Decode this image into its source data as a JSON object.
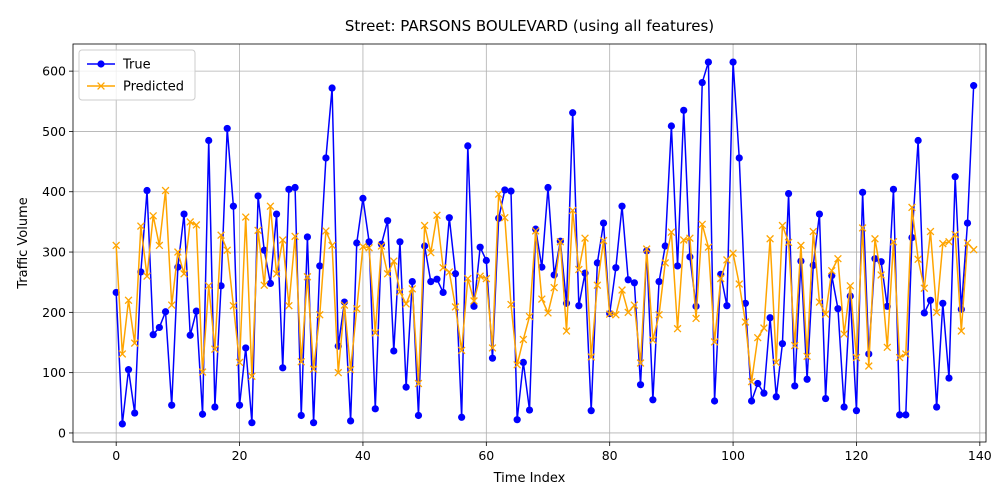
{
  "chart_data": {
    "type": "line",
    "title": "Street: PARSONS BOULEVARD (using all features)",
    "xlabel": "Time Index",
    "ylabel": "Traffic Volume",
    "xlim": [
      -7,
      141
    ],
    "ylim": [
      -15,
      645
    ],
    "x_ticks": [
      0,
      20,
      40,
      60,
      80,
      100,
      120,
      140
    ],
    "y_ticks": [
      0,
      100,
      200,
      300,
      400,
      500,
      600
    ],
    "grid": true,
    "legend_position": "upper-left",
    "series": [
      {
        "name": "True",
        "color": "#0000ff",
        "marker": "circle",
        "values": [
          233,
          15,
          105,
          33,
          267,
          402,
          163,
          175,
          201,
          46,
          275,
          363,
          162,
          202,
          31,
          485,
          43,
          244,
          505,
          376,
          46,
          141,
          17,
          393,
          303,
          248,
          363,
          108,
          404,
          407,
          29,
          325,
          17,
          277,
          456,
          572,
          144,
          217,
          20,
          315,
          389,
          317,
          40,
          313,
          352,
          136,
          317,
          76,
          251,
          29,
          310,
          251,
          255,
          233,
          357,
          264,
          26,
          476,
          210,
          308,
          286,
          124,
          356,
          403,
          401,
          22,
          117,
          38,
          338,
          275,
          407,
          262,
          318,
          215,
          531,
          211,
          265,
          37,
          282,
          348,
          198,
          274,
          376,
          254,
          249,
          80,
          302,
          55,
          251,
          310,
          509,
          277,
          535,
          292,
          210,
          581,
          615,
          53,
          263,
          211,
          615,
          456,
          215,
          53,
          82,
          66,
          191,
          60,
          148,
          397,
          78,
          285,
          89,
          278,
          363,
          57,
          261,
          206,
          43,
          227,
          37,
          399,
          131,
          289,
          284,
          210,
          404,
          30,
          30,
          324,
          485,
          199,
          220,
          43,
          215,
          91,
          425,
          205,
          348,
          576
        ]
      },
      {
        "name": "Predicted",
        "color": "#ffa500",
        "marker": "x",
        "values": [
          311,
          131,
          220,
          149,
          343,
          260,
          360,
          311,
          402,
          212,
          300,
          264,
          350,
          345,
          101,
          244,
          139,
          328,
          303,
          211,
          117,
          358,
          94,
          336,
          245,
          376,
          264,
          320,
          211,
          326,
          118,
          259,
          106,
          196,
          335,
          311,
          100,
          212,
          105,
          206,
          309,
          307,
          166,
          310,
          264,
          285,
          234,
          214,
          239,
          82,
          344,
          299,
          361,
          274,
          267,
          209,
          137,
          256,
          219,
          260,
          256,
          141,
          396,
          357,
          213,
          113,
          155,
          193,
          335,
          222,
          199,
          241,
          317,
          169,
          369,
          271,
          323,
          126,
          245,
          319,
          197,
          196,
          237,
          200,
          212,
          116,
          305,
          154,
          196,
          282,
          333,
          173,
          320,
          323,
          190,
          346,
          308,
          151,
          256,
          287,
          298,
          247,
          184,
          85,
          158,
          174,
          322,
          117,
          344,
          316,
          145,
          311,
          127,
          334,
          217,
          197,
          269,
          289,
          164,
          244,
          125,
          340,
          111,
          322,
          262,
          142,
          317,
          125,
          131,
          374,
          288,
          240,
          334,
          200,
          314,
          317,
          329,
          169,
          315,
          304
        ]
      }
    ]
  },
  "legend": {
    "true_label": "True",
    "predicted_label": "Predicted"
  }
}
